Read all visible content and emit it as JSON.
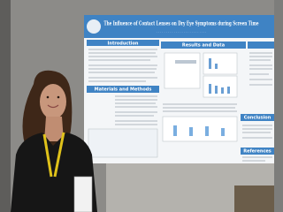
{
  "poster": {
    "title": "The Influence of Contact Lenses on Dry Eye Symptoms during Screen Time",
    "sections": [
      "Introduction",
      "Results and Data",
      "Materials and Methods",
      "Conclusion",
      "References"
    ]
  }
}
